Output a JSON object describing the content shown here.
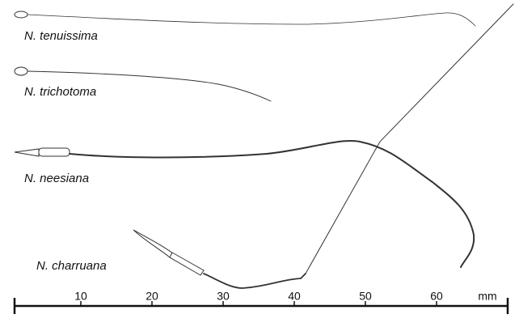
{
  "specimens": [
    {
      "label": "N. tenuissima"
    },
    {
      "label": "N. trichotoma"
    },
    {
      "label": "N. neesiana"
    },
    {
      "label": "N. charruana"
    }
  ],
  "scale": {
    "ticks": [
      10,
      20,
      30,
      40,
      50,
      60
    ],
    "unit": "mm"
  }
}
